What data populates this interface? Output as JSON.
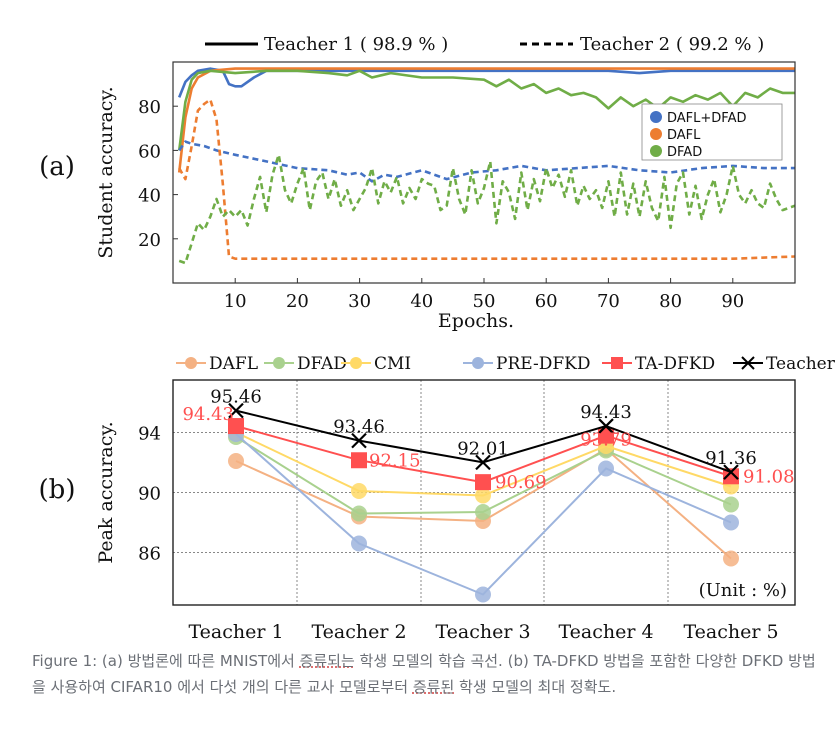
{
  "caption": {
    "part1": "Figure 1: (a) 방법론에 따른 MNIST에서 ",
    "underline1": "증류되는",
    "part2": " 학생 모델의 학습 곡선. (b) TA-DFKD 방법을 포함한 다양한 DFKD 방법을 사용하여 CIFAR10 에서 다섯 개의 다른 교사 모델로부터 ",
    "underline2": "증류된",
    "part3": " 학생 모델의 최대 정확도."
  },
  "chart_data": [
    {
      "id": "a",
      "panel_label": "(a)",
      "type": "line",
      "xlabel": "Epochs.",
      "ylabel": "Student accuracy.",
      "xlim": [
        0,
        100
      ],
      "ylim": [
        0,
        100
      ],
      "xticks": [
        10,
        20,
        30,
        40,
        50,
        60,
        70,
        80,
        90
      ],
      "yticks": [
        20,
        40,
        60,
        80
      ],
      "top_legend": [
        {
          "label": "Teacher 1 ( 98.9 % )",
          "style": "solid"
        },
        {
          "label": "Teacher 2 ( 99.2 % )",
          "style": "dashed"
        }
      ],
      "legend_position": "right",
      "series": [
        {
          "name": "DAFL+DFAD",
          "color": "#4472C4",
          "teacher": 1,
          "style": "solid",
          "points": [
            [
              1,
              84
            ],
            [
              2,
              91
            ],
            [
              3,
              94
            ],
            [
              4,
              96
            ],
            [
              6,
              97
            ],
            [
              8,
              96
            ],
            [
              9,
              90
            ],
            [
              10,
              89
            ],
            [
              11,
              89
            ],
            [
              13,
              93
            ],
            [
              15,
              96
            ],
            [
              20,
              96
            ],
            [
              25,
              96
            ],
            [
              30,
              96
            ],
            [
              40,
              96
            ],
            [
              50,
              96
            ],
            [
              60,
              96
            ],
            [
              70,
              96
            ],
            [
              75,
              95
            ],
            [
              80,
              96
            ],
            [
              90,
              96
            ],
            [
              100,
              96
            ]
          ]
        },
        {
          "name": "DAFL",
          "color": "#ED7D31",
          "teacher": 1,
          "style": "solid",
          "points": [
            [
              1,
              50
            ],
            [
              2,
              75
            ],
            [
              3,
              88
            ],
            [
              4,
              93
            ],
            [
              6,
              96
            ],
            [
              10,
              97
            ],
            [
              20,
              97
            ],
            [
              30,
              97
            ],
            [
              40,
              97
            ],
            [
              50,
              97
            ],
            [
              60,
              97
            ],
            [
              70,
              97
            ],
            [
              80,
              97
            ],
            [
              90,
              97
            ],
            [
              100,
              97
            ]
          ]
        },
        {
          "name": "DFAD",
          "color": "#70AD47",
          "teacher": 1,
          "style": "solid",
          "points": [
            [
              1,
              60
            ],
            [
              2,
              82
            ],
            [
              3,
              92
            ],
            [
              4,
              95
            ],
            [
              6,
              96
            ],
            [
              10,
              95
            ],
            [
              15,
              96
            ],
            [
              20,
              96
            ],
            [
              25,
              95
            ],
            [
              28,
              94
            ],
            [
              30,
              96
            ],
            [
              32,
              93
            ],
            [
              35,
              95
            ],
            [
              40,
              93
            ],
            [
              45,
              93
            ],
            [
              50,
              92
            ],
            [
              52,
              89
            ],
            [
              54,
              92
            ],
            [
              56,
              88
            ],
            [
              58,
              90
            ],
            [
              60,
              86
            ],
            [
              62,
              88
            ],
            [
              64,
              85
            ],
            [
              66,
              86
            ],
            [
              68,
              84
            ],
            [
              70,
              79
            ],
            [
              72,
              84
            ],
            [
              74,
              80
            ],
            [
              76,
              83
            ],
            [
              78,
              79
            ],
            [
              80,
              84
            ],
            [
              82,
              82
            ],
            [
              84,
              85
            ],
            [
              86,
              83
            ],
            [
              88,
              86
            ],
            [
              90,
              80
            ],
            [
              92,
              86
            ],
            [
              94,
              84
            ],
            [
              96,
              88
            ],
            [
              98,
              86
            ],
            [
              100,
              86
            ]
          ]
        },
        {
          "name": "DAFL+DFAD",
          "color": "#4472C4",
          "teacher": 2,
          "style": "dashed",
          "points": [
            [
              1,
              60
            ],
            [
              2,
              64
            ],
            [
              3,
              63
            ],
            [
              5,
              62
            ],
            [
              7,
              60
            ],
            [
              10,
              58
            ],
            [
              15,
              55
            ],
            [
              20,
              52
            ],
            [
              25,
              51
            ],
            [
              28,
              49
            ],
            [
              30,
              50
            ],
            [
              32,
              46
            ],
            [
              34,
              49
            ],
            [
              36,
              48
            ],
            [
              40,
              51
            ],
            [
              44,
              47
            ],
            [
              48,
              50
            ],
            [
              52,
              51
            ],
            [
              56,
              53
            ],
            [
              60,
              51
            ],
            [
              65,
              52
            ],
            [
              70,
              53
            ],
            [
              75,
              51
            ],
            [
              80,
              50
            ],
            [
              85,
              52
            ],
            [
              90,
              53
            ],
            [
              95,
              52
            ],
            [
              100,
              52
            ]
          ]
        },
        {
          "name": "DAFL",
          "color": "#ED7D31",
          "teacher": 2,
          "style": "dashed",
          "points": [
            [
              1,
              52
            ],
            [
              2,
              47
            ],
            [
              3,
              62
            ],
            [
              4,
              78
            ],
            [
              5,
              81
            ],
            [
              6,
              83
            ],
            [
              7,
              74
            ],
            [
              8,
              45
            ],
            [
              9,
              12
            ],
            [
              10,
              11
            ],
            [
              20,
              11
            ],
            [
              40,
              11
            ],
            [
              60,
              11
            ],
            [
              80,
              11
            ],
            [
              90,
              11
            ],
            [
              100,
              12
            ]
          ]
        },
        {
          "name": "DFAD",
          "color": "#70AD47",
          "teacher": 2,
          "style": "dashed",
          "points": [
            [
              1,
              10
            ],
            [
              2,
              9
            ],
            [
              3,
              18
            ],
            [
              4,
              27
            ],
            [
              5,
              24
            ],
            [
              6,
              30
            ],
            [
              7,
              38
            ],
            [
              8,
              30
            ],
            [
              9,
              33
            ],
            [
              10,
              30
            ],
            [
              11,
              33
            ],
            [
              12,
              26
            ],
            [
              13,
              38
            ],
            [
              14,
              48
            ],
            [
              15,
              32
            ],
            [
              16,
              49
            ],
            [
              17,
              58
            ],
            [
              18,
              42
            ],
            [
              19,
              36
            ],
            [
              20,
              45
            ],
            [
              21,
              52
            ],
            [
              22,
              33
            ],
            [
              23,
              46
            ],
            [
              24,
              50
            ],
            [
              25,
              38
            ],
            [
              26,
              47
            ],
            [
              27,
              35
            ],
            [
              28,
              42
            ],
            [
              29,
              33
            ],
            [
              30,
              38
            ],
            [
              31,
              43
            ],
            [
              32,
              52
            ],
            [
              33,
              36
            ],
            [
              34,
              46
            ],
            [
              35,
              41
            ],
            [
              36,
              48
            ],
            [
              37,
              36
            ],
            [
              38,
              43
            ],
            [
              39,
              38
            ],
            [
              40,
              47
            ],
            [
              41,
              45
            ],
            [
              42,
              44
            ],
            [
              43,
              33
            ],
            [
              44,
              35
            ],
            [
              45,
              52
            ],
            [
              46,
              38
            ],
            [
              47,
              31
            ],
            [
              48,
              51
            ],
            [
              49,
              36
            ],
            [
              50,
              43
            ],
            [
              51,
              55
            ],
            [
              52,
              27
            ],
            [
              53,
              46
            ],
            [
              54,
              41
            ],
            [
              55,
              29
            ],
            [
              56,
              50
            ],
            [
              57,
              33
            ],
            [
              58,
              47
            ],
            [
              59,
              37
            ],
            [
              60,
              52
            ],
            [
              61,
              43
            ],
            [
              62,
              49
            ],
            [
              63,
              39
            ],
            [
              64,
              51
            ],
            [
              65,
              35
            ],
            [
              66,
              44
            ],
            [
              67,
              38
            ],
            [
              68,
              42
            ],
            [
              69,
              34
            ],
            [
              70,
              46
            ],
            [
              71,
              30
            ],
            [
              72,
              50
            ],
            [
              73,
              31
            ],
            [
              74,
              45
            ],
            [
              75,
              30
            ],
            [
              76,
              46
            ],
            [
              77,
              34
            ],
            [
              78,
              28
            ],
            [
              79,
              48
            ],
            [
              80,
              25
            ],
            [
              81,
              45
            ],
            [
              82,
              50
            ],
            [
              83,
              31
            ],
            [
              84,
              44
            ],
            [
              85,
              29
            ],
            [
              86,
              40
            ],
            [
              87,
              47
            ],
            [
              88,
              32
            ],
            [
              89,
              40
            ],
            [
              90,
              53
            ],
            [
              91,
              40
            ],
            [
              92,
              36
            ],
            [
              93,
              42
            ],
            [
              94,
              36
            ],
            [
              95,
              34
            ],
            [
              96,
              45
            ],
            [
              97,
              38
            ],
            [
              98,
              33
            ],
            [
              100,
              35
            ]
          ]
        }
      ]
    },
    {
      "id": "b",
      "panel_label": "(b)",
      "type": "line",
      "xlabel": "",
      "ylabel": "Peak accuracy.",
      "categories": [
        "Teacher 1",
        "Teacher 2",
        "Teacher 3",
        "Teacher 4",
        "Teacher 5"
      ],
      "ylim": [
        82.5,
        97.5
      ],
      "yticks": [
        86,
        90,
        94
      ],
      "grid": true,
      "legend_position": "top",
      "unit_note": "(Unit : %)",
      "series": [
        {
          "name": "DAFL",
          "color": "#F4B183",
          "marker": "circle",
          "values": [
            92.1,
            88.4,
            88.1,
            92.9,
            85.6
          ]
        },
        {
          "name": "DFAD",
          "color": "#A9D18E",
          "marker": "circle",
          "values": [
            93.7,
            88.6,
            88.7,
            92.8,
            89.2
          ]
        },
        {
          "name": "CMI",
          "color": "#FFD966",
          "marker": "circle",
          "values": [
            94.0,
            90.1,
            89.8,
            93.1,
            90.4
          ]
        },
        {
          "name": "PRE-DFKD",
          "color": "#9DB4DD",
          "marker": "circle",
          "values": [
            93.9,
            86.6,
            83.2,
            91.6,
            88.0
          ]
        },
        {
          "name": "TA-DFKD",
          "color": "#FF5050",
          "marker": "square",
          "values": [
            94.43,
            92.15,
            90.69,
            93.79,
            91.08
          ],
          "labels": [
            "94.43",
            "92.15",
            "90.69",
            "93.79",
            "91.08"
          ]
        },
        {
          "name": "Teacher Acc.",
          "color": "#000000",
          "marker": "x",
          "values": [
            95.46,
            93.46,
            92.01,
            94.43,
            91.36
          ],
          "labels": [
            "95.46",
            "93.46",
            "92.01",
            "94.43",
            "91.36"
          ]
        }
      ]
    }
  ]
}
